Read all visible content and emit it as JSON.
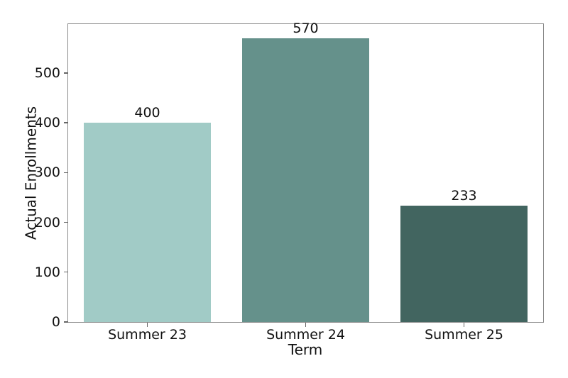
{
  "figure": {
    "background": "#ffffff",
    "spine_color": "#8a8a8a",
    "text_color": "#111111"
  },
  "chart_data": {
    "type": "bar",
    "title": "",
    "xlabel": "Term",
    "ylabel": "Actual Enrollments",
    "categories": [
      "Summer 23",
      "Summer 24",
      "Summer 25"
    ],
    "values": [
      400,
      570,
      233
    ],
    "bar_labels": [
      "400",
      "570",
      "233"
    ],
    "bar_colors": [
      "#a1cbc6",
      "#65918b",
      "#426560"
    ],
    "ylim": [
      0,
      598
    ],
    "yticks": [
      0,
      100,
      200,
      300,
      400,
      500
    ],
    "bar_width_fraction": 0.8,
    "grid": false,
    "legend": null
  }
}
